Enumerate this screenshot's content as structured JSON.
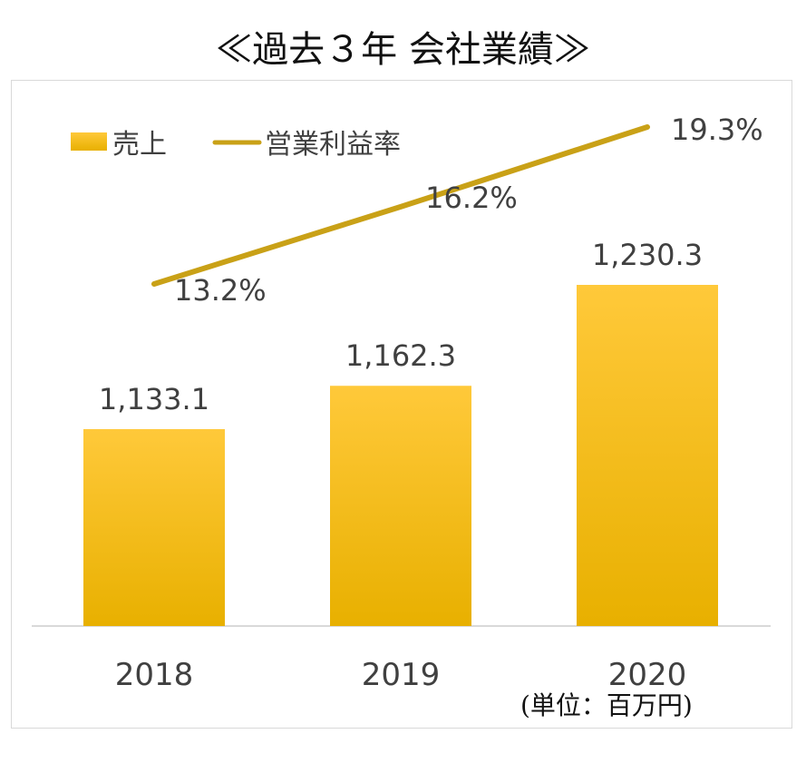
{
  "title": "≪過去３年 会社業績≫",
  "unit_note": "(単位：百万円)",
  "colors": {
    "bar_top": "#ffc93a",
    "bar_bottom": "#e8b000",
    "line": "#c9a117",
    "axis": "#d9d9d9",
    "text": "#404040"
  },
  "chart_data": {
    "type": "bar",
    "categories": [
      "2018",
      "2019",
      "2020"
    ],
    "series": [
      {
        "name": "売上",
        "type": "bar",
        "values": [
          1133.1,
          1162.3,
          1230.3
        ],
        "labels": [
          "1,133.1",
          "1,162.3",
          "1,230.3"
        ]
      },
      {
        "name": "営業利益率",
        "type": "line",
        "values": [
          13.2,
          16.2,
          19.3
        ],
        "labels": [
          "13.2%",
          "16.2%",
          "19.3%"
        ]
      }
    ],
    "legend_position": "top-left",
    "grid": false
  }
}
